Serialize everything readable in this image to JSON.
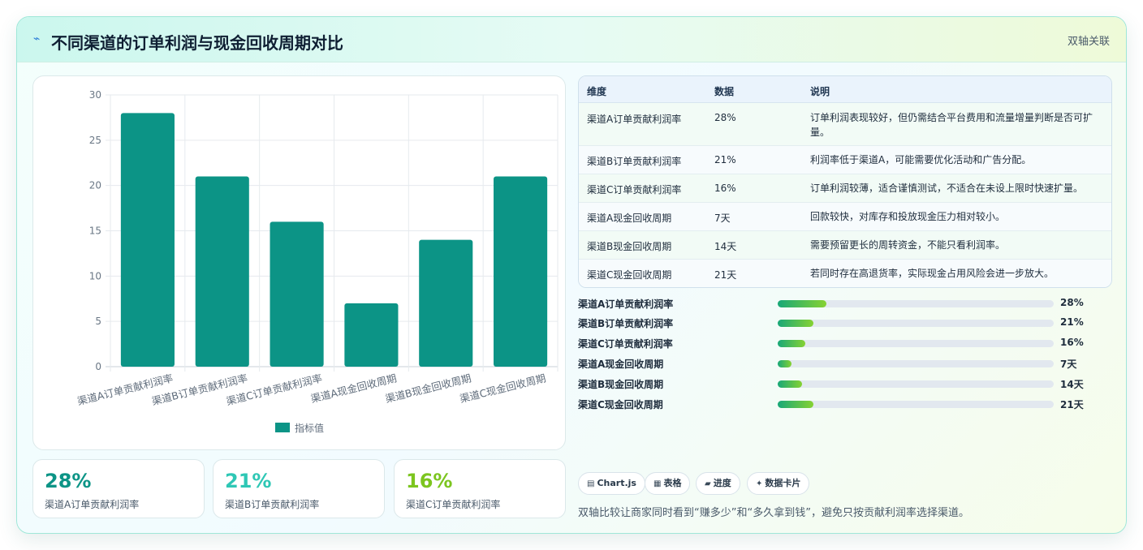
{
  "header": {
    "icon": "pulse-icon",
    "title": "不同渠道的订单利润与现金回收周期对比",
    "tag": "双轴关联"
  },
  "chart_data": {
    "type": "bar",
    "categories": [
      "渠道A订单贡献利润率",
      "渠道B订单贡献利润率",
      "渠道C订单贡献利润率",
      "渠道A现金回收周期",
      "渠道B现金回收周期",
      "渠道C现金回收周期"
    ],
    "series": [
      {
        "name": "指标值",
        "values": [
          28,
          21,
          16,
          7,
          14,
          21
        ],
        "color": "#0c9486"
      }
    ],
    "yticks": [
      "0",
      "5",
      "10",
      "15",
      "20",
      "25",
      "30"
    ],
    "ylim": [
      0,
      30
    ],
    "grid": true,
    "legend": "bottom"
  },
  "kpis": [
    {
      "value": "28%",
      "label": "渠道A订单贡献利润率",
      "color": "#0c9486"
    },
    {
      "value": "21%",
      "label": "渠道B订单贡献利润率",
      "color": "#2ec7b5"
    },
    {
      "value": "16%",
      "label": "渠道C订单贡献利润率",
      "color": "#7cc51f"
    }
  ],
  "table": {
    "headers": [
      "维度",
      "数据",
      "说明"
    ],
    "rows": [
      {
        "dim": "渠道A订单贡献利润率",
        "data": "28%",
        "desc": "订单利润表现较好，但仍需结合平台费用和流量增量判断是否可扩量。"
      },
      {
        "dim": "渠道B订单贡献利润率",
        "data": "21%",
        "desc": "利润率低于渠道A，可能需要优化活动和广告分配。"
      },
      {
        "dim": "渠道C订单贡献利润率",
        "data": "16%",
        "desc": "订单利润较薄，适合谨慎测试，不适合在未设上限时快速扩量。"
      },
      {
        "dim": "渠道A现金回收周期",
        "data": "7天",
        "desc": "回款较快，对库存和投放现金压力相对较小。"
      },
      {
        "dim": "渠道B现金回收周期",
        "data": "14天",
        "desc": "需要预留更长的周转资金，不能只看利润率。"
      },
      {
        "dim": "渠道C现金回收周期",
        "data": "21天",
        "desc": "若同时存在高退货率，实际现金占用风险会进一步放大。"
      }
    ]
  },
  "progress": [
    {
      "label": "渠道A订单贡献利润率",
      "value": "28%",
      "fill": 0.175
    },
    {
      "label": "渠道B订单贡献利润率",
      "value": "21%",
      "fill": 0.13
    },
    {
      "label": "渠道C订单贡献利润率",
      "value": "16%",
      "fill": 0.1
    },
    {
      "label": "渠道A现金回收周期",
      "value": "7天",
      "fill": 0.05
    },
    {
      "label": "渠道B现金回收周期",
      "value": "14天",
      "fill": 0.088
    },
    {
      "label": "渠道C现金回收周期",
      "value": "21天",
      "fill": 0.13
    }
  ],
  "chips": [
    {
      "icon": "chart-icon",
      "glyph": "▤",
      "label": "Chart.js"
    },
    {
      "icon": "table-icon",
      "glyph": "▦",
      "label": "表格"
    },
    {
      "icon": "progress-icon",
      "glyph": "▰",
      "label": "进度"
    },
    {
      "icon": "sparkle-icon",
      "glyph": "✦",
      "label": "数据卡片"
    }
  ],
  "note": "双轴比较让商家同时看到“赚多少”和“多久拿到钱”，避免只按贡献利润率选择渠道。"
}
